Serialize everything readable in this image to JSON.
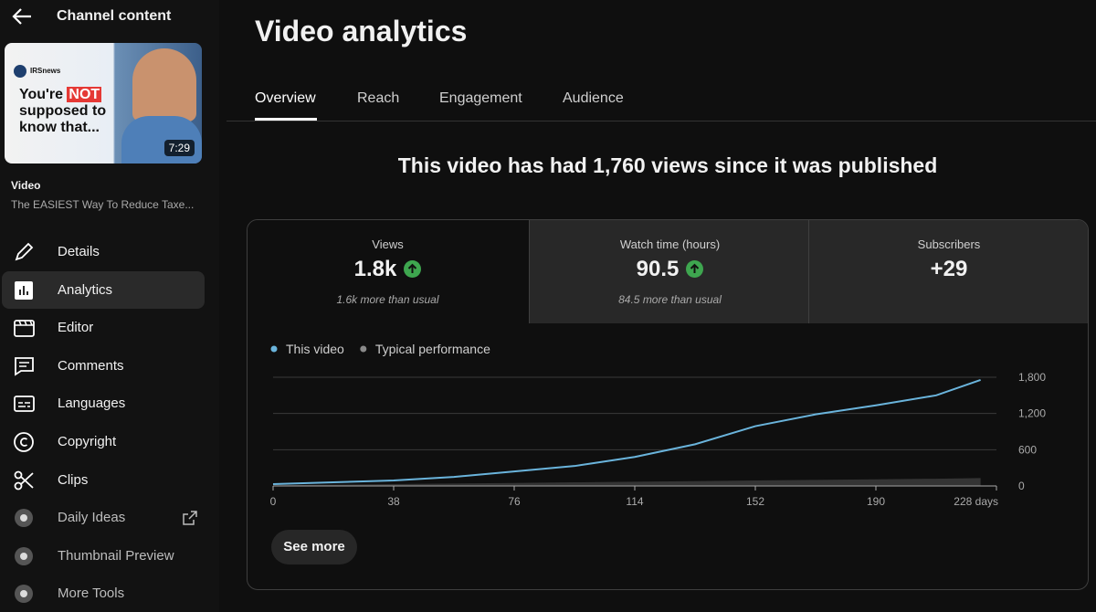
{
  "sidebar": {
    "title": "Channel content",
    "thumbnail": {
      "badge": "IRSnews",
      "line1": "You're",
      "highlight": "NOT",
      "line2": "supposed to",
      "line3": "know that...",
      "duration": "7:29"
    },
    "video_label": "Video",
    "video_title": "The EASIEST Way To Reduce Taxe...",
    "nav": [
      "Details",
      "Analytics",
      "Editor",
      "Comments",
      "Languages",
      "Copyright",
      "Clips",
      "Daily Ideas",
      "Thumbnail Preview",
      "More Tools"
    ]
  },
  "header": {
    "title": "Video analytics",
    "tabs": [
      "Overview",
      "Reach",
      "Engagement",
      "Audience"
    ]
  },
  "summary": "This video has had 1,760 views since it was published",
  "metrics": [
    {
      "label": "Views",
      "value": "1.8k",
      "note": "1.6k more than usual"
    },
    {
      "label": "Watch time (hours)",
      "value": "90.5",
      "note": "84.5 more than usual"
    },
    {
      "label": "Subscribers",
      "value": "+29"
    }
  ],
  "chart_data": {
    "type": "line",
    "x": [
      0,
      19,
      38,
      57,
      76,
      95,
      114,
      133,
      152,
      171,
      190,
      209,
      223
    ],
    "series": [
      {
        "name": "This video",
        "color": "#6ab4dc",
        "values": [
          30,
          60,
          90,
          150,
          240,
          330,
          480,
          690,
          990,
          1185,
          1335,
          1500,
          1755
        ]
      },
      {
        "name": "Typical performance",
        "color": "#8a8a8a",
        "area": true,
        "values": [
          10,
          20,
          30,
          40,
          50,
          60,
          70,
          80,
          90,
          100,
          110,
          120,
          130
        ]
      }
    ],
    "xlim": [
      0,
      228
    ],
    "xticks": [
      0,
      38,
      76,
      114,
      152,
      190,
      {
        "value": 228,
        "label": "228 days"
      }
    ],
    "ylim": [
      0,
      1800
    ],
    "yticks": [
      0,
      600,
      {
        "value": 1200,
        "label": "1,200"
      },
      {
        "value": 1800,
        "label": "1,800"
      }
    ],
    "grid": true
  },
  "button": "See more"
}
